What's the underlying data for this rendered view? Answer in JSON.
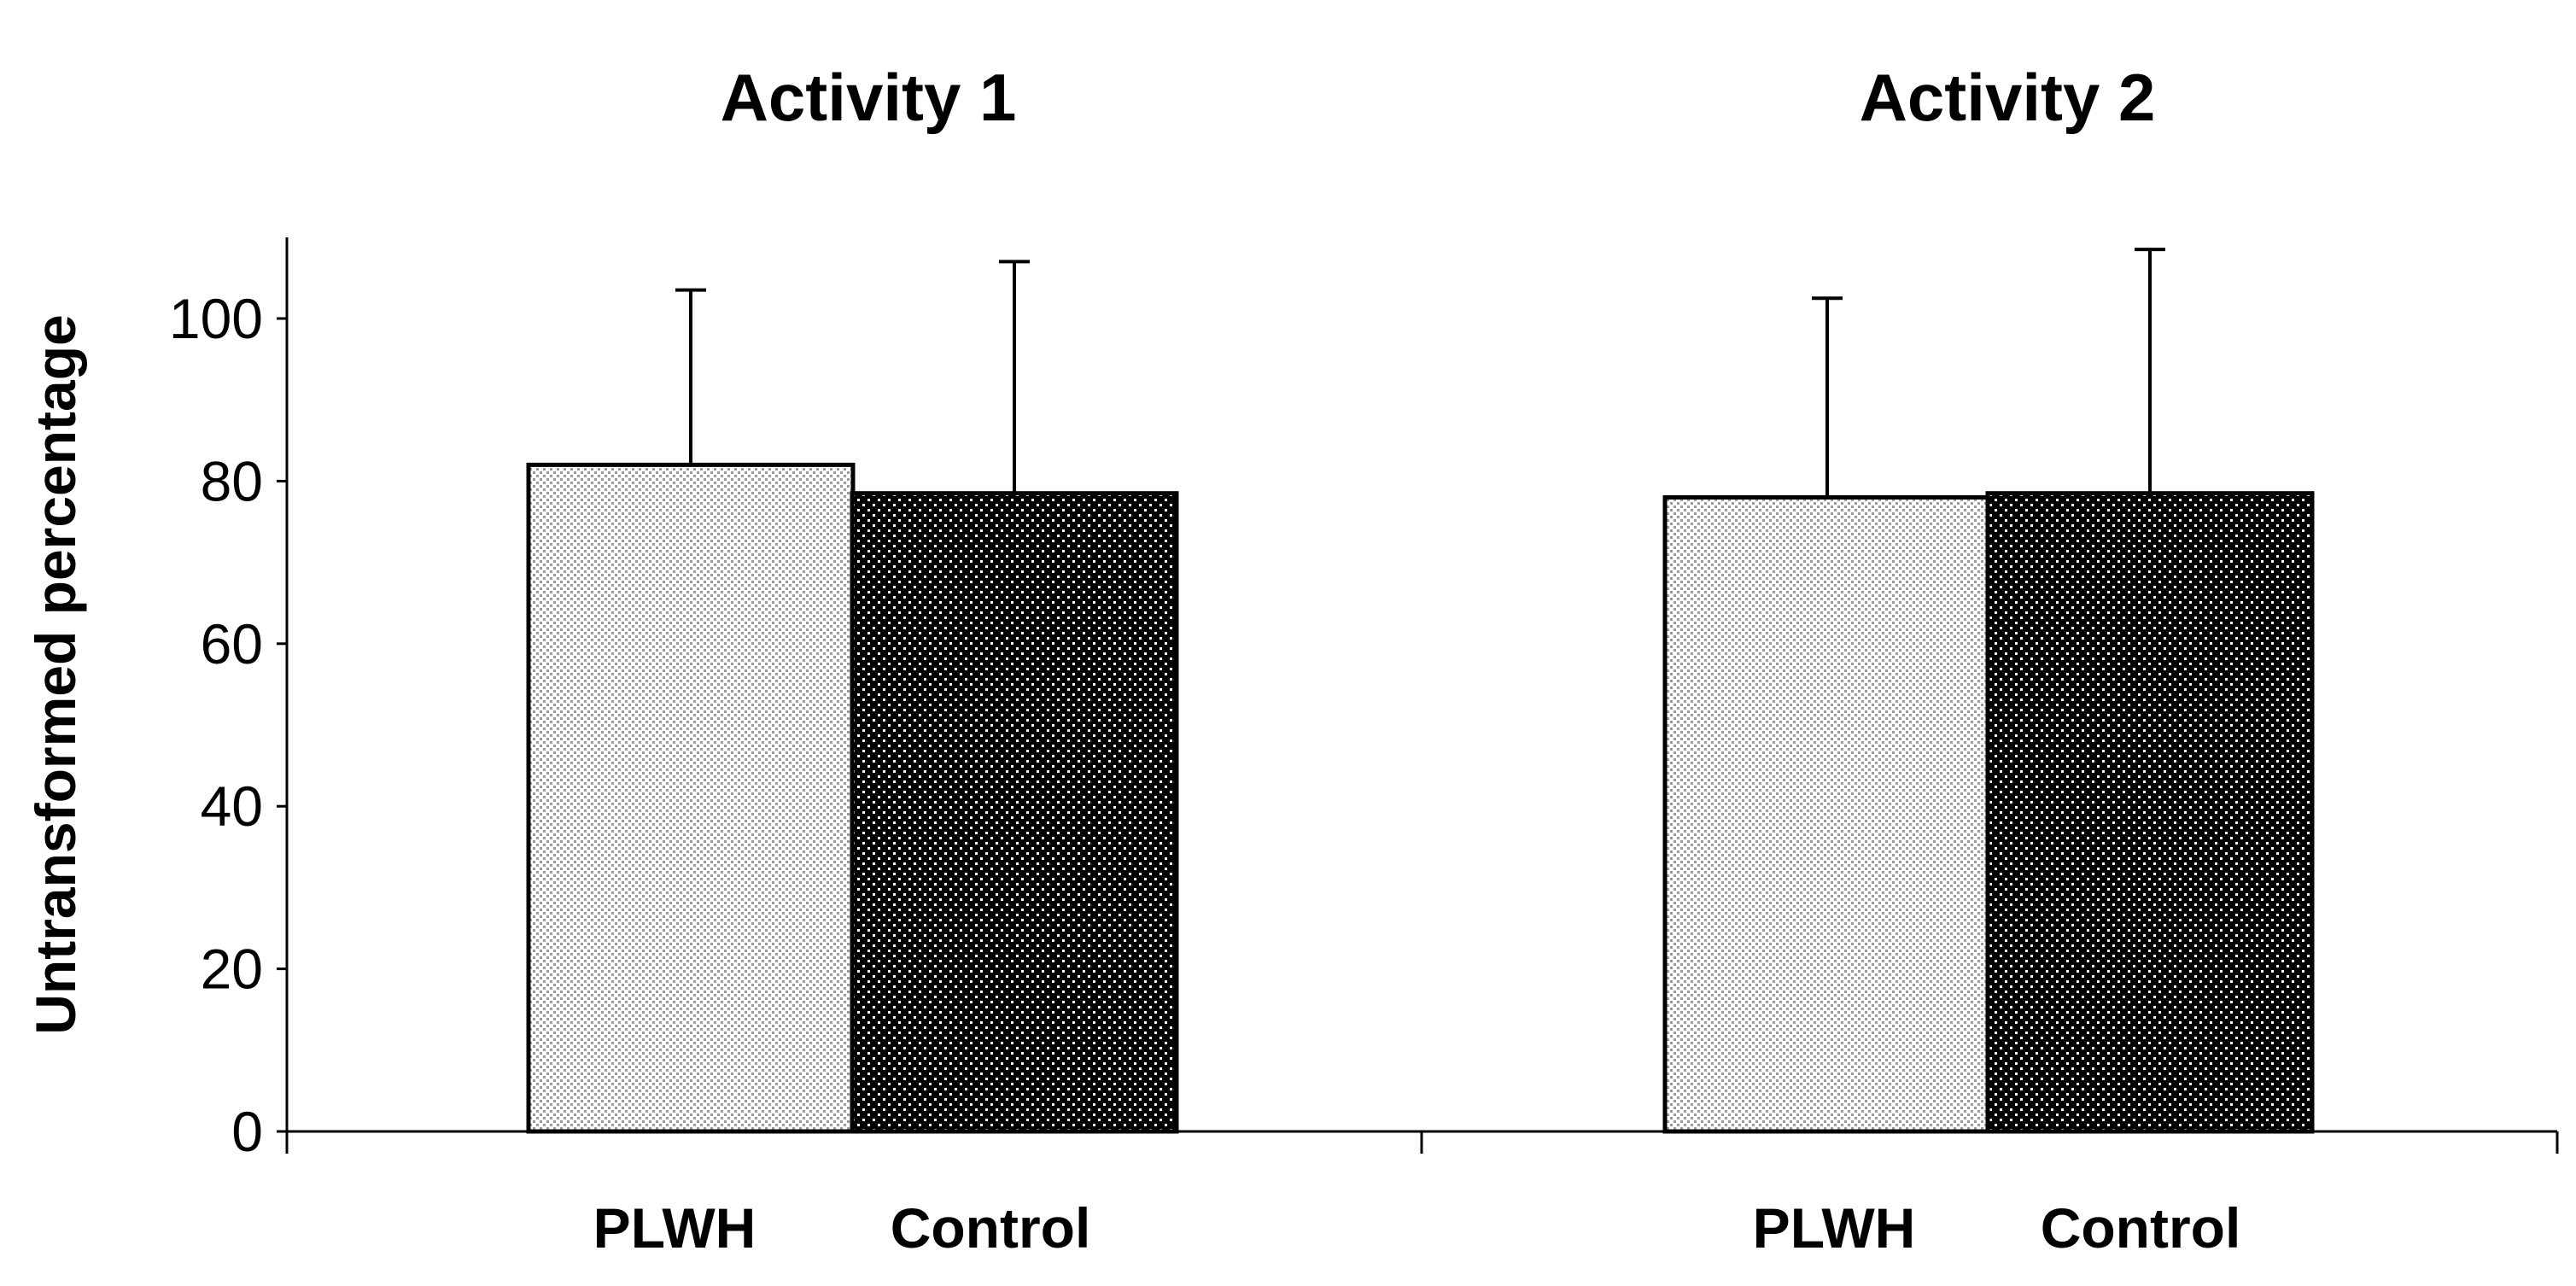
{
  "chart_data": {
    "type": "bar",
    "ylabel": "Untransformed percentage",
    "ylim": [
      0,
      110
    ],
    "yticks": [
      0,
      20,
      40,
      60,
      80,
      100
    ],
    "grid": false,
    "legend": "none",
    "groups": [
      {
        "title": "Activity 1",
        "bars": [
          {
            "category": "PLWH",
            "value": 82,
            "error_upper": 103.5,
            "fill": "light-stipple"
          },
          {
            "category": "Control",
            "value": 78.5,
            "error_upper": 107,
            "fill": "dark-dots"
          }
        ]
      },
      {
        "title": "Activity 2",
        "bars": [
          {
            "category": "PLWH",
            "value": 78,
            "error_upper": 102.5,
            "fill": "light-stipple"
          },
          {
            "category": "Control",
            "value": 78.5,
            "error_upper": 108.5,
            "fill": "dark-dots"
          }
        ]
      }
    ],
    "colors": {
      "light_fill": "#d9d9d9",
      "dark_fill": "#000000",
      "axis": "#000000"
    }
  }
}
